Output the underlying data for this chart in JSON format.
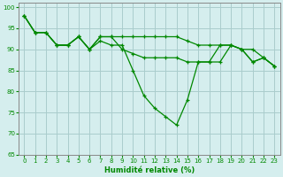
{
  "x": [
    0,
    1,
    2,
    3,
    4,
    5,
    6,
    7,
    8,
    9,
    10,
    11,
    12,
    13,
    14,
    15,
    16,
    17,
    18,
    19,
    20,
    21,
    22,
    23
  ],
  "series1": [
    98,
    94,
    94,
    91,
    91,
    93,
    90,
    93,
    93,
    93,
    93,
    93,
    93,
    93,
    93,
    92,
    91,
    91,
    91,
    91,
    90,
    90,
    88,
    86
  ],
  "series2": [
    98,
    94,
    94,
    91,
    91,
    93,
    90,
    92,
    91,
    91,
    85,
    79,
    76,
    74,
    72,
    78,
    87,
    87,
    87,
    91,
    90,
    87,
    88,
    86
  ],
  "series3": [
    98,
    94,
    94,
    91,
    91,
    93,
    90,
    93,
    93,
    90,
    89,
    88,
    88,
    88,
    88,
    87,
    87,
    87,
    91,
    91,
    90,
    87,
    88,
    86
  ],
  "background_color": "#d5eeee",
  "grid_color": "#aacccc",
  "line_color": "#008800",
  "xlabel": "Humidité relative (%)",
  "ylim": [
    65,
    101
  ],
  "xlim": [
    -0.5,
    23.5
  ],
  "yticks": [
    65,
    70,
    75,
    80,
    85,
    90,
    95,
    100
  ],
  "xticks": [
    0,
    1,
    2,
    3,
    4,
    5,
    6,
    7,
    8,
    9,
    10,
    11,
    12,
    13,
    14,
    15,
    16,
    17,
    18,
    19,
    20,
    21,
    22,
    23
  ]
}
